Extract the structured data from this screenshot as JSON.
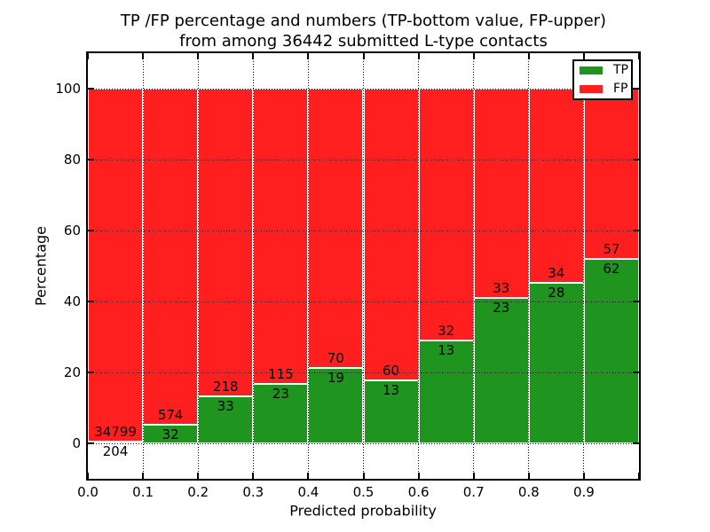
{
  "chart_data": {
    "type": "bar",
    "stacked": true,
    "title": "TP /FP percentage and numbers (TP-bottom value, FP-upper) from among 36442 submitted L-type contacts",
    "title_line1": "TP /FP percentage and numbers (TP-bottom value, FP-upper)",
    "title_line2": "from among 36442 submitted L-type contacts",
    "xlabel": "Predicted probability",
    "ylabel": "Percentage",
    "xlim": [
      0.0,
      1.0
    ],
    "ylim": [
      -10,
      110
    ],
    "bin_width": 0.1,
    "x_tick_labels": [
      "0.0",
      "0.1",
      "0.2",
      "0.3",
      "0.4",
      "0.5",
      "0.6",
      "0.7",
      "0.8",
      "0.9"
    ],
    "y_tick_values": [
      0,
      20,
      40,
      60,
      80,
      100
    ],
    "categories": [
      "0.0-0.1",
      "0.1-0.2",
      "0.2-0.3",
      "0.3-0.4",
      "0.4-0.5",
      "0.5-0.6",
      "0.6-0.7",
      "0.7-0.8",
      "0.8-0.9",
      "0.9-1.0"
    ],
    "series": [
      {
        "name": "TP",
        "color": "#1f941f",
        "counts": [
          204,
          32,
          33,
          23,
          19,
          13,
          13,
          23,
          28,
          62
        ]
      },
      {
        "name": "FP",
        "color": "#ff1f1f",
        "counts": [
          34799,
          574,
          218,
          115,
          70,
          60,
          32,
          33,
          34,
          57
        ]
      }
    ],
    "note": "bars show stacked percentage TP/(TP+FP)*100 and FP fills to 100%; numeric labels are raw counts (TP below boundary, FP above)",
    "legend_position": "upper right",
    "grid": {
      "style": "dotted",
      "color": "#000000"
    },
    "total_contacts": 36442
  }
}
